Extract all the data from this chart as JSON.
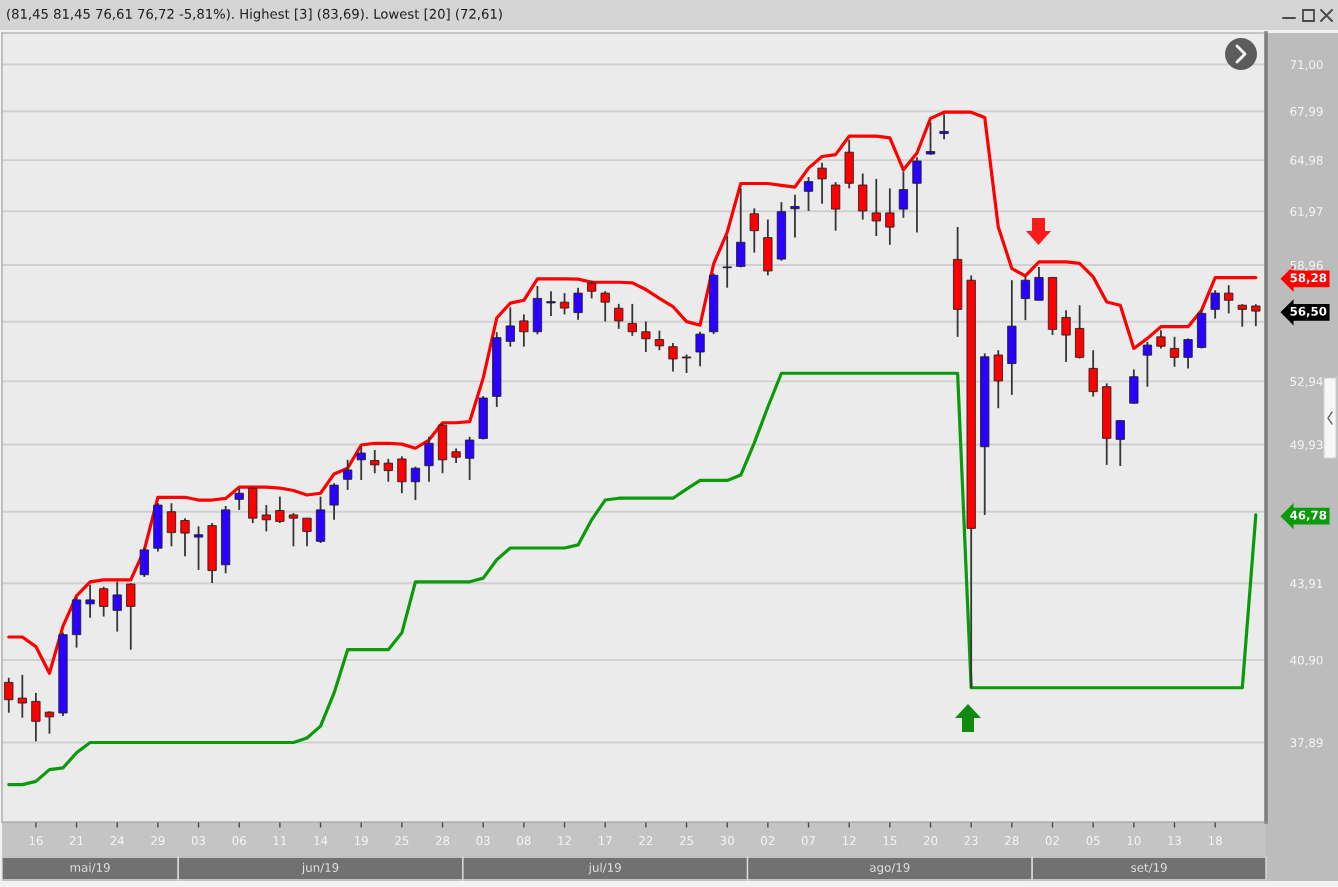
{
  "chart_data": {
    "type": "candlestick",
    "title": "(81,45 81,45 76,61 76,72 -5,81%). Highest [3] (83,69). Lowest [20] (72,61)",
    "categories": [
      null,
      null,
      "16",
      null,
      null,
      "21",
      null,
      null,
      "24",
      null,
      null,
      "29",
      null,
      null,
      "03",
      null,
      null,
      "06",
      null,
      null,
      "11",
      null,
      null,
      "14",
      null,
      null,
      "19",
      null,
      null,
      "25",
      null,
      null,
      "28",
      null,
      null,
      "03",
      null,
      null,
      "08",
      null,
      null,
      "12",
      null,
      null,
      "17",
      null,
      null,
      "22",
      null,
      null,
      "25",
      null,
      null,
      "30",
      null,
      null,
      "02",
      null,
      null,
      "07",
      null,
      null,
      "12",
      null,
      null,
      "15",
      null,
      null,
      "20",
      null,
      null,
      "23",
      null,
      null,
      "28",
      null,
      null,
      "02",
      null,
      null,
      "05",
      null,
      null,
      "10",
      null,
      null,
      "13",
      null,
      null,
      "18",
      null,
      null,
      null
    ],
    "series": [
      {
        "ohlc": [
          [
            40.06,
            40.23,
            38.95,
            39.42
          ],
          [
            39.48,
            40.34,
            38.77,
            39.3
          ],
          [
            39.36,
            39.67,
            37.93,
            38.64
          ],
          [
            38.97,
            39.0,
            38.2,
            38.8
          ],
          [
            38.94,
            41.95,
            38.83,
            41.87
          ],
          [
            41.87,
            43.36,
            41.37,
            43.24
          ],
          [
            43.08,
            43.85,
            42.53,
            43.24
          ],
          [
            43.69,
            43.77,
            42.58,
            42.98
          ],
          [
            42.82,
            43.98,
            41.99,
            43.44
          ],
          [
            43.88,
            43.91,
            41.29,
            42.98
          ],
          [
            44.26,
            45.38,
            44.17,
            45.29
          ],
          [
            45.36,
            47.3,
            45.22,
            47.21
          ],
          [
            46.92,
            47.29,
            45.44,
            46.02
          ],
          [
            46.54,
            46.64,
            45.02,
            46.0
          ],
          [
            45.83,
            46.29,
            44.46,
            45.93
          ],
          [
            46.32,
            46.43,
            43.92,
            44.43
          ],
          [
            44.67,
            47.17,
            44.32,
            47.0
          ],
          [
            47.46,
            47.95,
            47.0,
            47.73
          ],
          [
            47.95,
            48.02,
            46.43,
            46.64
          ],
          [
            46.78,
            47.21,
            46.07,
            46.57
          ],
          [
            46.97,
            47.58,
            46.43,
            46.5
          ],
          [
            46.78,
            46.86,
            45.44,
            46.64
          ],
          [
            46.64,
            46.64,
            45.44,
            46.07
          ],
          [
            45.65,
            47.58,
            45.58,
            47.0
          ],
          [
            47.21,
            48.17,
            46.57,
            48.09
          ],
          [
            48.35,
            49.23,
            47.88,
            48.77
          ],
          [
            49.23,
            49.84,
            48.32,
            49.54
          ],
          [
            49.2,
            49.68,
            48.62,
            49.0
          ],
          [
            49.08,
            49.27,
            48.24,
            48.74
          ],
          [
            49.27,
            49.39,
            47.73,
            48.24
          ],
          [
            48.24,
            48.92,
            47.43,
            48.85
          ],
          [
            48.96,
            50.29,
            48.24,
            49.99
          ],
          [
            50.84,
            50.92,
            48.62,
            49.23
          ],
          [
            49.6,
            49.75,
            49.08,
            49.35
          ],
          [
            49.3,
            50.29,
            48.32,
            50.14
          ],
          [
            50.21,
            52.22,
            50.17,
            52.13
          ],
          [
            52.21,
            55.41,
            51.7,
            55.13
          ],
          [
            54.94,
            56.7,
            54.67,
            55.73
          ],
          [
            55.99,
            56.33,
            54.67,
            55.43
          ],
          [
            55.43,
            57.83,
            55.3,
            57.17
          ],
          [
            56.93,
            57.55,
            56.24,
            57.0
          ],
          [
            56.97,
            57.45,
            56.33,
            56.66
          ],
          [
            56.42,
            57.73,
            56.05,
            57.45
          ],
          [
            57.98,
            58.12,
            57.17,
            57.55
          ],
          [
            57.45,
            57.55,
            55.96,
            56.97
          ],
          [
            56.65,
            56.88,
            55.58,
            55.99
          ],
          [
            55.86,
            56.88,
            55.22,
            55.43
          ],
          [
            55.43,
            55.96,
            54.4,
            55.07
          ],
          [
            55.03,
            55.49,
            54.49,
            54.71
          ],
          [
            54.67,
            54.85,
            53.43,
            54.05
          ],
          [
            54.15,
            54.27,
            53.35,
            54.1
          ],
          [
            54.4,
            55.43,
            53.69,
            55.31
          ],
          [
            55.43,
            58.51,
            55.31,
            58.41
          ],
          [
            58.82,
            60.58,
            57.74,
            58.86
          ],
          [
            58.89,
            63.3,
            58.84,
            60.22
          ],
          [
            61.83,
            62.14,
            59.65,
            60.87
          ],
          [
            60.48,
            61.5,
            58.4,
            58.64
          ],
          [
            59.29,
            62.5,
            59.2,
            61.95
          ],
          [
            62.12,
            62.93,
            60.48,
            62.25
          ],
          [
            63.13,
            63.97,
            61.99,
            63.7
          ],
          [
            64.5,
            64.82,
            62.4,
            63.86
          ],
          [
            63.5,
            63.67,
            60.87,
            62.1
          ],
          [
            65.46,
            66.22,
            63.3,
            63.6
          ],
          [
            63.5,
            64.18,
            61.5,
            61.99
          ],
          [
            61.88,
            63.86,
            60.57,
            61.42
          ],
          [
            61.88,
            63.3,
            60.08,
            61.07
          ],
          [
            62.1,
            64.3,
            61.6,
            63.23
          ],
          [
            63.6,
            65.16,
            60.77,
            64.93
          ],
          [
            65.35,
            67.3,
            65.3,
            65.5
          ],
          [
            66.6,
            67.8,
            66.25,
            66.73
          ],
          [
            59.27,
            61.08,
            55.17,
            56.59
          ],
          [
            58.14,
            58.4,
            39.86,
            46.2
          ],
          [
            49.83,
            54.33,
            46.78,
            54.16
          ],
          [
            54.25,
            54.49,
            51.64,
            52.96
          ],
          [
            53.82,
            58.14,
            52.28,
            55.72
          ],
          [
            57.16,
            58.32,
            56.03,
            58.14
          ],
          [
            57.07,
            58.86,
            57.07,
            58.29
          ],
          [
            58.29,
            58.29,
            55.26,
            55.55
          ],
          [
            56.17,
            56.55,
            53.9,
            55.26
          ],
          [
            55.6,
            56.81,
            54.07,
            54.13
          ],
          [
            53.58,
            54.49,
            52.2,
            52.44
          ],
          [
            52.68,
            52.84,
            49.0,
            50.22
          ],
          [
            50.17,
            51.08,
            48.95,
            51.05
          ],
          [
            51.88,
            53.53,
            51.85,
            53.17
          ],
          [
            54.24,
            54.91,
            52.68,
            54.75
          ],
          [
            55.17,
            55.51,
            54.58,
            54.69
          ],
          [
            54.58,
            55.17,
            53.66,
            54.13
          ],
          [
            54.13,
            55.09,
            53.58,
            55.03
          ],
          [
            54.63,
            56.59,
            54.58,
            56.38
          ],
          [
            56.59,
            57.6,
            56.11,
            57.45
          ],
          [
            57.45,
            57.87,
            56.38,
            57.07
          ],
          [
            56.81,
            56.86,
            55.69,
            56.59
          ],
          [
            56.77,
            56.86,
            55.72,
            56.5
          ]
        ],
        "colors": [
          "#ff0000",
          "#ff0000",
          "#ff0000",
          "#ff0000",
          "#2a00ff",
          "#2a00ff",
          "#2a00ff",
          "#ff0000",
          "#2a00ff",
          "#ff0000",
          "#2a00ff",
          "#2a00ff",
          "#ff0000",
          "#ff0000",
          "#2a00ff",
          "#ff0000",
          "#2a00ff",
          "#2a00ff",
          "#ff0000",
          "#ff0000",
          "#ff0000",
          "#ff0000",
          "#ff0000",
          "#2a00ff",
          "#2a00ff",
          "#2a00ff",
          "#2a00ff",
          "#ff0000",
          "#ff0000",
          "#ff0000",
          "#2a00ff",
          "#2a00ff",
          "#ff0000",
          "#ff0000",
          "#2a00ff",
          "#2a00ff",
          "#2a00ff",
          "#2a00ff",
          "#ff0000",
          "#2a00ff",
          "#2a00ff",
          "#ff0000",
          "#2a00ff",
          "#ff0000",
          "#ff0000",
          "#ff0000",
          "#ff0000",
          "#ff0000",
          "#ff0000",
          "#ff0000",
          "#ff0000",
          "#2a00ff",
          "#2a00ff",
          "#2a00ff",
          "#2a00ff",
          "#ff0000",
          "#ff0000",
          "#2a00ff",
          "#2a00ff",
          "#2a00ff",
          "#ff0000",
          "#ff0000",
          "#ff0000",
          "#ff0000",
          "#ff0000",
          "#ff0000",
          "#2a00ff",
          "#2a00ff",
          "#2a00ff",
          "#2a00ff",
          "#ff0000",
          "#ff0000",
          "#2a00ff",
          "#ff0000",
          "#2a00ff",
          "#2a00ff",
          "#2a00ff",
          "#ff0000",
          "#ff0000",
          "#ff0000",
          "#ff0000",
          "#ff0000",
          "#2a00ff",
          "#2a00ff",
          "#2a00ff",
          "#ff0000",
          "#ff0000",
          "#2a00ff",
          "#2a00ff",
          "#2a00ff",
          "#ff0000",
          "#ff0000",
          "#ff0000"
        ]
      },
      {
        "type": "line",
        "color": "#ff0000",
        "values": [
          41.78,
          41.78,
          41.41,
          40.4,
          42.2,
          43.4,
          43.97,
          44.05,
          44.05,
          44.05,
          45.29,
          47.55,
          47.55,
          47.55,
          47.43,
          47.43,
          47.5,
          48.0,
          48.0,
          48.0,
          47.96,
          47.85,
          47.65,
          47.73,
          48.59,
          48.85,
          49.91,
          49.99,
          49.99,
          49.95,
          49.76,
          50.14,
          50.95,
          50.95,
          51.0,
          53.1,
          56.14,
          56.92,
          57.07,
          58.21,
          58.21,
          58.21,
          58.2,
          58.03,
          58.03,
          58.03,
          58.0,
          57.64,
          57.17,
          56.74,
          55.95,
          55.77,
          59.02,
          60.78,
          63.59,
          63.59,
          63.59,
          63.48,
          63.38,
          64.5,
          65.2,
          65.31,
          66.44,
          66.44,
          66.44,
          66.33,
          64.4,
          65.41,
          67.54,
          67.93,
          67.93,
          67.93,
          67.6,
          61.08,
          58.77,
          58.37,
          59.14,
          59.14,
          59.14,
          59.05,
          58.32,
          56.98,
          56.81,
          54.58,
          55.09,
          55.69,
          55.69,
          55.69,
          56.55,
          58.28,
          58.28,
          58.28,
          58.28
        ]
      },
      {
        "type": "line",
        "color": "#0a9a0a",
        "values": [
          36.44,
          36.44,
          36.55,
          36.95,
          37.01,
          37.53,
          37.89,
          37.89,
          37.89,
          37.89,
          37.89,
          37.89,
          37.89,
          37.89,
          37.89,
          37.89,
          37.89,
          37.89,
          37.89,
          37.89,
          37.89,
          37.89,
          38.05,
          38.47,
          39.67,
          41.29,
          41.29,
          41.29,
          41.29,
          41.94,
          43.97,
          43.97,
          43.97,
          43.97,
          43.97,
          44.12,
          44.88,
          45.37,
          45.37,
          45.37,
          45.37,
          45.37,
          45.5,
          46.57,
          47.43,
          47.51,
          47.51,
          47.51,
          47.51,
          47.51,
          47.91,
          48.3,
          48.3,
          48.3,
          48.54,
          50.01,
          51.7,
          53.34,
          53.34,
          53.34,
          53.34,
          53.34,
          53.34,
          53.34,
          53.34,
          53.34,
          53.34,
          53.34,
          53.34,
          53.34,
          53.34,
          39.86,
          39.86,
          39.86,
          39.86,
          39.86,
          39.86,
          39.86,
          39.86,
          39.86,
          39.86,
          39.86,
          39.86,
          39.86,
          39.86,
          39.86,
          39.86,
          39.86,
          39.86,
          39.86,
          39.86,
          39.86,
          46.78
        ]
      }
    ],
    "log": true,
    "ylim": [
      35.2,
      73.1
    ],
    "yticks": [
      {
        "value": 37.89,
        "label": "37,89"
      },
      {
        "value": 40.9,
        "label": "40,90"
      },
      {
        "value": 43.91,
        "label": "43,91"
      },
      {
        "value": 46.78,
        "label": "46,78"
      },
      {
        "value": 46.92,
        "label": null
      },
      {
        "value": 49.93,
        "label": "49,93"
      },
      {
        "value": 52.94,
        "label": "52,94"
      },
      {
        "value": 55.95,
        "label": null
      },
      {
        "value": 56.5,
        "label": "56,50"
      },
      {
        "value": 58.28,
        "label": "58,28"
      },
      {
        "value": 58.96,
        "label": "58,96"
      },
      {
        "value": 61.97,
        "label": "61,97"
      },
      {
        "value": 64.98,
        "label": "64,98"
      },
      {
        "value": 67.99,
        "label": "67,99"
      },
      {
        "value": 71.0,
        "label": "71,00"
      }
    ],
    "grid": "y",
    "annotations": [
      "mai/19",
      "jun/19",
      "jul/19",
      "ago/19",
      "set/19"
    ]
  }
}
